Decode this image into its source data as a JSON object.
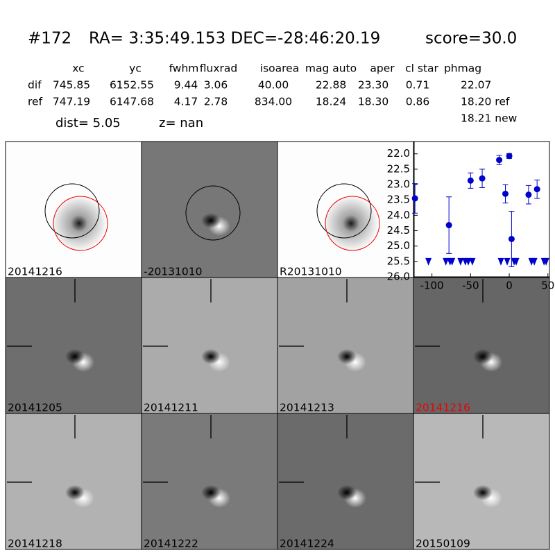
{
  "header": {
    "id": "#172",
    "coords": "RA= 3:35:49.153 DEC=-28:46:20.19",
    "score": "score=30.0"
  },
  "table": {
    "columns": [
      "xc",
      "yc",
      "fwhm",
      "fluxrad",
      "isoarea",
      "mag auto",
      "aper",
      "cl star",
      "phmag"
    ],
    "rows": [
      [
        "dif",
        "745.85",
        "6152.55",
        "9.44",
        "3.06",
        "40.00",
        "22.88",
        "23.30",
        "0.71",
        "22.07"
      ],
      [
        "ref",
        "747.19",
        "6147.68",
        "4.17",
        "2.78",
        "834.00",
        "18.24",
        "18.30",
        "0.86",
        "18.20 ref"
      ]
    ],
    "extra": "18.21 new"
  },
  "info": {
    "dist": "dist=  5.05",
    "z": "z=   nan"
  },
  "panels": [
    "20141216",
    "-20131010",
    "R20131010",
    "20141205",
    "20141211",
    "20141213",
    "20141216",
    "20141218",
    "20141222",
    "20141224",
    "20150109"
  ],
  "chart_data": {
    "type": "scatter",
    "xlim": [
      -123,
      52
    ],
    "ylim": [
      21.6,
      26.0
    ],
    "y_inverted": true,
    "xticks": [
      -100,
      -50,
      0,
      50
    ],
    "yticks": [
      {
        "value": 22,
        "label": "22.0"
      },
      22.5,
      {
        "value": 23,
        "label": "23.0"
      },
      23.5,
      {
        "value": 24,
        "label": "24.0"
      },
      24.5,
      {
        "value": 25,
        "label": "25.0"
      },
      25.5,
      {
        "value": 26,
        "label": "26.0"
      }
    ],
    "series": [
      {
        "color": "#0000cc",
        "marker": "circle",
        "x": [
          -122,
          -78,
          -50,
          -35,
          -13,
          -5,
          0,
          3,
          25,
          36
        ],
        "values": [
          23.45,
          24.32,
          22.87,
          22.8,
          22.2,
          23.3,
          22.07,
          24.77,
          23.33,
          23.15
        ],
        "errors": [
          0.48,
          0.92,
          0.25,
          0.3,
          0.15,
          0.3,
          0.08,
          0.9,
          0.3,
          0.3
        ]
      },
      {
        "color": "#0000cc",
        "marker": "triangle-down",
        "x": [
          -104.5,
          -82,
          -76.6,
          -73.9,
          -63,
          -56.8,
          -53,
          -47.7,
          -10.8,
          -2.7,
          6.3,
          9,
          28.8,
          32.4,
          45,
          47.7
        ],
        "values": [
          25.5,
          25.5,
          25.5,
          25.5,
          25.5,
          25.5,
          25.5,
          25.5,
          25.5,
          25.5,
          25.5,
          25.5,
          25.5,
          25.5,
          25.5,
          25.5
        ]
      }
    ]
  }
}
